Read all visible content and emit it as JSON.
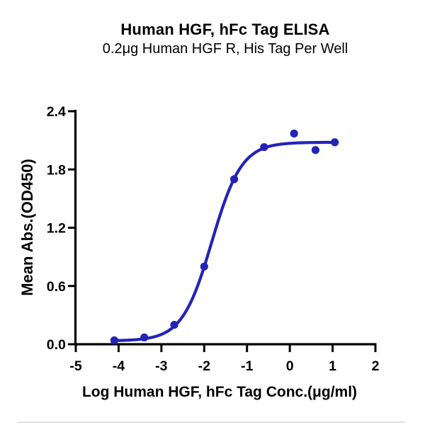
{
  "chart": {
    "title": "Human HGF, hFc Tag ELISA",
    "subtitle": "0.2μg Human HGF R, His Tag Per Well",
    "x_label": "Log Human HGF, hFc Tag Conc.(μg/ml)",
    "y_label": "Mean Abs.(OD450)"
  },
  "chart_data": {
    "type": "scatter",
    "title": "Human HGF, hFc Tag ELISA",
    "subtitle": "0.2μg Human HGF R, His Tag Per Well",
    "xlabel": "Log Human HGF, hFc Tag Conc.(μg/ml)",
    "ylabel": "Mean Abs.(OD450)",
    "xlim": [
      -5,
      2
    ],
    "ylim": [
      0,
      2.4
    ],
    "x_ticks": [
      -5,
      -4,
      -3,
      -2,
      -1,
      0,
      1,
      2
    ],
    "x_tick_labels": [
      "-5",
      "-4",
      "-3",
      "-2",
      "-1",
      "0",
      "1",
      "2"
    ],
    "y_ticks": [
      0.0,
      0.6,
      1.2,
      1.8,
      2.4
    ],
    "y_tick_labels": [
      "0.0",
      "0.6",
      "1.2",
      "1.8",
      "2.4"
    ],
    "grid": false,
    "legend": false,
    "points": [
      {
        "x": -4.1,
        "y": 0.04
      },
      {
        "x": -3.4,
        "y": 0.07
      },
      {
        "x": -2.7,
        "y": 0.2
      },
      {
        "x": -2.0,
        "y": 0.8
      },
      {
        "x": -1.3,
        "y": 1.7
      },
      {
        "x": -0.6,
        "y": 2.03
      },
      {
        "x": 0.1,
        "y": 2.17
      },
      {
        "x": 0.6,
        "y": 2.0
      },
      {
        "x": 1.05,
        "y": 2.08
      }
    ],
    "fit_curve": {
      "model": "4PL",
      "bottom": 0.035,
      "top": 2.08,
      "logec50": -1.82,
      "hillslope": 1.25,
      "x_start": -4.1,
      "x_end": 1.05
    },
    "series_color": "#2323b8",
    "axis_color": "#000000"
  }
}
